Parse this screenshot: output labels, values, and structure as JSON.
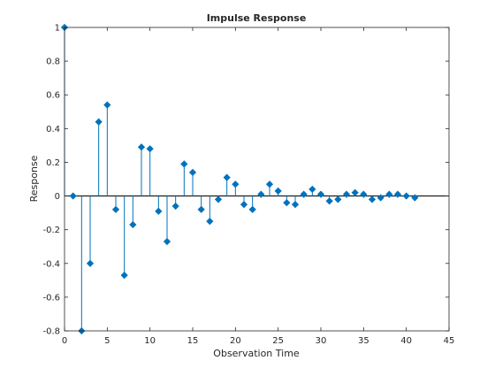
{
  "chart_data": {
    "type": "stem",
    "title": "Impulse Response",
    "xlabel": "Observation Time",
    "ylabel": "Response",
    "xlim": [
      0,
      45
    ],
    "ylim": [
      -0.8,
      1
    ],
    "xticks": [
      0,
      5,
      10,
      15,
      20,
      25,
      30,
      35,
      40,
      45
    ],
    "yticks": [
      -0.8,
      -0.6,
      -0.4,
      -0.2,
      0,
      0.2,
      0.4,
      0.6,
      0.8,
      1
    ],
    "ytick_labels": [
      "-0.8",
      "-0.6",
      "-0.4",
      "-0.2",
      "0",
      "0.2",
      "0.4",
      "0.6",
      "0.8",
      "1"
    ],
    "grid": false,
    "baseline": 0,
    "series": [
      {
        "color": "#0072bd",
        "marker": "diamond",
        "x": [
          0,
          1,
          2,
          3,
          4,
          5,
          6,
          7,
          8,
          9,
          10,
          11,
          12,
          13,
          14,
          15,
          16,
          17,
          18,
          19,
          20,
          21,
          22,
          23,
          24,
          25,
          26,
          27,
          28,
          29,
          30,
          31,
          32,
          33,
          34,
          35,
          36,
          37,
          38,
          39,
          40,
          41
        ],
        "y": [
          1.0,
          0.0,
          -0.8,
          -0.4,
          0.44,
          0.54,
          -0.08,
          -0.47,
          -0.17,
          0.29,
          0.28,
          -0.09,
          -0.27,
          -0.06,
          0.19,
          0.14,
          -0.08,
          -0.15,
          -0.02,
          0.11,
          0.07,
          -0.05,
          -0.08,
          0.01,
          0.07,
          0.03,
          -0.04,
          -0.05,
          0.01,
          0.04,
          0.01,
          -0.03,
          -0.02,
          0.01,
          0.02,
          0.01,
          -0.02,
          -0.01,
          0.01,
          0.01,
          0.0,
          -0.01
        ]
      }
    ]
  }
}
